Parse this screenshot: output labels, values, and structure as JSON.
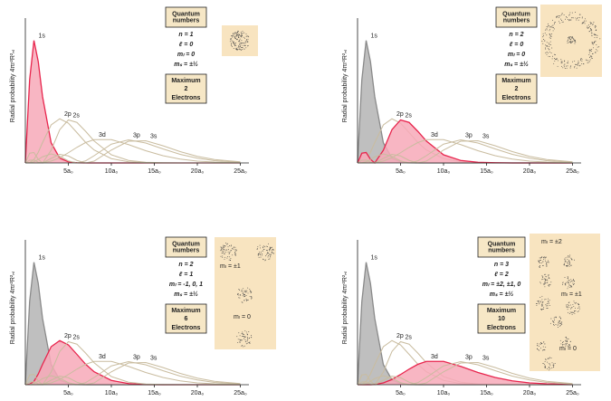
{
  "chart_data": [
    {
      "type": "line",
      "y_label": "Radial probability 4πr²R²ₙₗ",
      "x": [
        0,
        0.5,
        1,
        1.5,
        2,
        3,
        4,
        5,
        6,
        7,
        8,
        10,
        12,
        14,
        16,
        18,
        20,
        22,
        25
      ],
      "xlim": [
        0,
        26
      ],
      "ylim": [
        0,
        0.6
      ],
      "xticks": [
        {
          "value": 5,
          "label": "5a₀"
        },
        {
          "value": 10,
          "label": "10a₀"
        },
        {
          "value": 15,
          "label": "15a₀"
        },
        {
          "value": 20,
          "label": "20a₀"
        },
        {
          "value": 25,
          "label": "25a₀"
        }
      ],
      "series": [
        {
          "name": "1s",
          "color": "#e8254d",
          "fill": "#f7a9b8",
          "values": [
            0,
            0.368,
            0.541,
            0.448,
            0.293,
            0.089,
            0.021,
            0.005,
            0.001,
            0,
            0,
            0,
            0,
            0,
            0,
            0,
            0,
            0,
            0
          ]
        },
        {
          "name": "2p",
          "color": "#c9bc9f",
          "values": [
            0,
            0.002,
            0.015,
            0.047,
            0.09,
            0.168,
            0.195,
            0.176,
            0.134,
            0.091,
            0.057,
            0.019,
            0.005,
            0.001,
            0,
            0,
            0,
            0,
            0
          ]
        },
        {
          "name": "2s",
          "color": "#c9bc9f",
          "values": [
            0,
            0.043,
            0.046,
            0.016,
            0,
            0.056,
            0.147,
            0.19,
            0.179,
            0.14,
            0.097,
            0.036,
            0.011,
            0.003,
            0.001,
            0,
            0,
            0,
            0
          ]
        },
        {
          "name": "3d",
          "color": "#c9bc9f",
          "values": [
            0,
            0,
            0,
            0,
            0.001,
            0.008,
            0.023,
            0.045,
            0.069,
            0.09,
            0.103,
            0.103,
            0.081,
            0.054,
            0.032,
            0.017,
            0.008,
            0.004,
            0.001
          ]
        },
        {
          "name": "3p",
          "color": "#c9bc9f",
          "values": [
            0,
            0.001,
            0.005,
            0.015,
            0.027,
            0.04,
            0.029,
            0.009,
            0,
            0.009,
            0.032,
            0.083,
            0.102,
            0.088,
            0.062,
            0.038,
            0.021,
            0.01,
            0.003
          ]
        },
        {
          "name": "3s",
          "color": "#c9bc9f",
          "values": [
            0,
            0.012,
            0.013,
            0.003,
            0,
            0.02,
            0.038,
            0.031,
            0.011,
            0,
            0.008,
            0.057,
            0.096,
            0.098,
            0.076,
            0.05,
            0.029,
            0.015,
            0.005
          ]
        }
      ],
      "info": {
        "heading": "Quantum numbers",
        "lines": [
          "n = 1",
          "ℓ = 0",
          "mₗ = 0",
          "mₛ = ±½"
        ],
        "max_label": "Maximum",
        "max_value": 2,
        "max_unit": "Electrons"
      },
      "orbital_labels": []
    },
    {
      "type": "line",
      "y_label": "Radial probability 4πr²R²ₙₗ",
      "x": [
        0,
        0.5,
        1,
        1.5,
        2,
        3,
        4,
        5,
        6,
        7,
        8,
        10,
        12,
        14,
        16,
        18,
        20,
        22,
        25
      ],
      "xlim": [
        0,
        26
      ],
      "ylim": [
        0,
        0.6
      ],
      "xticks": [
        {
          "value": 5,
          "label": "5a₀"
        },
        {
          "value": 10,
          "label": "10a₀"
        },
        {
          "value": 15,
          "label": "15a₀"
        },
        {
          "value": 20,
          "label": "20a₀"
        },
        {
          "value": 25,
          "label": "25a₀"
        }
      ],
      "series": [
        {
          "name": "1s",
          "color": "#8a8a8a",
          "fill": "#b4b4b4",
          "values": [
            0,
            0.368,
            0.541,
            0.448,
            0.293,
            0.089,
            0.021,
            0.005,
            0.001,
            0,
            0,
            0,
            0,
            0,
            0,
            0,
            0,
            0,
            0
          ]
        },
        {
          "name": "2p",
          "color": "#c9bc9f",
          "values": [
            0,
            0.002,
            0.015,
            0.047,
            0.09,
            0.168,
            0.195,
            0.176,
            0.134,
            0.091,
            0.057,
            0.019,
            0.005,
            0.001,
            0,
            0,
            0,
            0,
            0
          ]
        },
        {
          "name": "2s",
          "color": "#e8254d",
          "fill": "#f7a9b8",
          "values": [
            0,
            0.043,
            0.046,
            0.016,
            0,
            0.056,
            0.147,
            0.19,
            0.179,
            0.14,
            0.097,
            0.036,
            0.011,
            0.003,
            0.001,
            0,
            0,
            0,
            0
          ]
        },
        {
          "name": "3d",
          "color": "#c9bc9f",
          "values": [
            0,
            0,
            0,
            0,
            0.001,
            0.008,
            0.023,
            0.045,
            0.069,
            0.09,
            0.103,
            0.103,
            0.081,
            0.054,
            0.032,
            0.017,
            0.008,
            0.004,
            0.001
          ]
        },
        {
          "name": "3p",
          "color": "#c9bc9f",
          "values": [
            0,
            0.001,
            0.005,
            0.015,
            0.027,
            0.04,
            0.029,
            0.009,
            0,
            0.009,
            0.032,
            0.083,
            0.102,
            0.088,
            0.062,
            0.038,
            0.021,
            0.01,
            0.003
          ]
        },
        {
          "name": "3s",
          "color": "#c9bc9f",
          "values": [
            0,
            0.012,
            0.013,
            0.003,
            0,
            0.02,
            0.038,
            0.031,
            0.011,
            0,
            0.008,
            0.057,
            0.096,
            0.098,
            0.076,
            0.05,
            0.029,
            0.015,
            0.005
          ]
        }
      ],
      "info": {
        "heading": "Quantum numbers",
        "lines": [
          "n = 2",
          "ℓ = 0",
          "mₗ = 0",
          "mₛ = ±½"
        ],
        "max_label": "Maximum",
        "max_value": 2,
        "max_unit": "Electrons"
      },
      "orbital_labels": []
    },
    {
      "type": "line",
      "y_label": "Radial probability 4πr²R²ₙₗ",
      "x": [
        0,
        0.5,
        1,
        1.5,
        2,
        3,
        4,
        5,
        6,
        7,
        8,
        10,
        12,
        14,
        16,
        18,
        20,
        22,
        25
      ],
      "xlim": [
        0,
        26
      ],
      "ylim": [
        0,
        0.6
      ],
      "xticks": [
        {
          "value": 5,
          "label": "5a₀"
        },
        {
          "value": 10,
          "label": "10a₀"
        },
        {
          "value": 15,
          "label": "15a₀"
        },
        {
          "value": 20,
          "label": "20a₀"
        },
        {
          "value": 25,
          "label": "25a₀"
        }
      ],
      "series": [
        {
          "name": "1s",
          "color": "#8a8a8a",
          "fill": "#b4b4b4",
          "values": [
            0,
            0.368,
            0.541,
            0.448,
            0.293,
            0.089,
            0.021,
            0.005,
            0.001,
            0,
            0,
            0,
            0,
            0,
            0,
            0,
            0,
            0,
            0
          ]
        },
        {
          "name": "2p",
          "color": "#e8254d",
          "fill": "#f7a9b8",
          "values": [
            0,
            0.002,
            0.015,
            0.047,
            0.09,
            0.168,
            0.195,
            0.176,
            0.134,
            0.091,
            0.057,
            0.019,
            0.005,
            0.001,
            0,
            0,
            0,
            0,
            0
          ]
        },
        {
          "name": "2s",
          "color": "#c9bc9f",
          "values": [
            0,
            0.043,
            0.046,
            0.016,
            0,
            0.056,
            0.147,
            0.19,
            0.179,
            0.14,
            0.097,
            0.036,
            0.011,
            0.003,
            0.001,
            0,
            0,
            0,
            0
          ]
        },
        {
          "name": "3d",
          "color": "#c9bc9f",
          "values": [
            0,
            0,
            0,
            0,
            0.001,
            0.008,
            0.023,
            0.045,
            0.069,
            0.09,
            0.103,
            0.103,
            0.081,
            0.054,
            0.032,
            0.017,
            0.008,
            0.004,
            0.001
          ]
        },
        {
          "name": "3p",
          "color": "#c9bc9f",
          "values": [
            0,
            0.001,
            0.005,
            0.015,
            0.027,
            0.04,
            0.029,
            0.009,
            0,
            0.009,
            0.032,
            0.083,
            0.102,
            0.088,
            0.062,
            0.038,
            0.021,
            0.01,
            0.003
          ]
        },
        {
          "name": "3s",
          "color": "#c9bc9f",
          "values": [
            0,
            0.012,
            0.013,
            0.003,
            0,
            0.02,
            0.038,
            0.031,
            0.011,
            0,
            0.008,
            0.057,
            0.096,
            0.098,
            0.076,
            0.05,
            0.029,
            0.015,
            0.005
          ]
        }
      ],
      "info": {
        "heading": "Quantum numbers",
        "lines": [
          "n = 2",
          "ℓ = 1",
          "mₗ = -1, 0, 1",
          "mₛ = ±½"
        ],
        "max_label": "Maximum",
        "max_value": 6,
        "max_unit": "Electrons"
      },
      "orbital_labels": [
        "mₗ = ±1",
        "mₗ = 0"
      ]
    },
    {
      "type": "line",
      "y_label": "Radial probability 4πr²R²ₙₗ",
      "x": [
        0,
        0.5,
        1,
        1.5,
        2,
        3,
        4,
        5,
        6,
        7,
        8,
        10,
        12,
        14,
        16,
        18,
        20,
        22,
        25
      ],
      "xlim": [
        0,
        26
      ],
      "ylim": [
        0,
        0.6
      ],
      "xticks": [
        {
          "value": 5,
          "label": "5a₀"
        },
        {
          "value": 10,
          "label": "10a₀"
        },
        {
          "value": 15,
          "label": "15a₀"
        },
        {
          "value": 20,
          "label": "20a₀"
        },
        {
          "value": 25,
          "label": "25a₀"
        }
      ],
      "series": [
        {
          "name": "1s",
          "color": "#8a8a8a",
          "fill": "#b4b4b4",
          "values": [
            0,
            0.368,
            0.541,
            0.448,
            0.293,
            0.089,
            0.021,
            0.005,
            0.001,
            0,
            0,
            0,
            0,
            0,
            0,
            0,
            0,
            0,
            0
          ]
        },
        {
          "name": "2p",
          "color": "#c9bc9f",
          "values": [
            0,
            0.002,
            0.015,
            0.047,
            0.09,
            0.168,
            0.195,
            0.176,
            0.134,
            0.091,
            0.057,
            0.019,
            0.005,
            0.001,
            0,
            0,
            0,
            0,
            0
          ]
        },
        {
          "name": "2s",
          "color": "#c9bc9f",
          "values": [
            0,
            0.043,
            0.046,
            0.016,
            0,
            0.056,
            0.147,
            0.19,
            0.179,
            0.14,
            0.097,
            0.036,
            0.011,
            0.003,
            0.001,
            0,
            0,
            0,
            0
          ]
        },
        {
          "name": "3d",
          "color": "#e8254d",
          "fill": "#f7a9b8",
          "values": [
            0,
            0,
            0,
            0,
            0.001,
            0.008,
            0.023,
            0.045,
            0.069,
            0.09,
            0.103,
            0.103,
            0.081,
            0.054,
            0.032,
            0.017,
            0.008,
            0.004,
            0.001
          ]
        },
        {
          "name": "3p",
          "color": "#c9bc9f",
          "values": [
            0,
            0.001,
            0.005,
            0.015,
            0.027,
            0.04,
            0.029,
            0.009,
            0,
            0.009,
            0.032,
            0.083,
            0.102,
            0.088,
            0.062,
            0.038,
            0.021,
            0.01,
            0.003
          ]
        },
        {
          "name": "3s",
          "color": "#c9bc9f",
          "values": [
            0,
            0.012,
            0.013,
            0.003,
            0,
            0.02,
            0.038,
            0.031,
            0.011,
            0,
            0.008,
            0.057,
            0.096,
            0.098,
            0.076,
            0.05,
            0.029,
            0.015,
            0.005
          ]
        }
      ],
      "info": {
        "heading": "Quantum numbers",
        "lines": [
          "n = 3",
          "ℓ = 2",
          "mₗ = ±2, ±1, 0",
          "mₛ = ±½"
        ],
        "max_label": "Maximum",
        "max_value": 10,
        "max_unit": "Electrons"
      },
      "orbital_labels": [
        "mₗ = ±2",
        "mₗ = ±1",
        "mₗ = 0"
      ]
    }
  ]
}
